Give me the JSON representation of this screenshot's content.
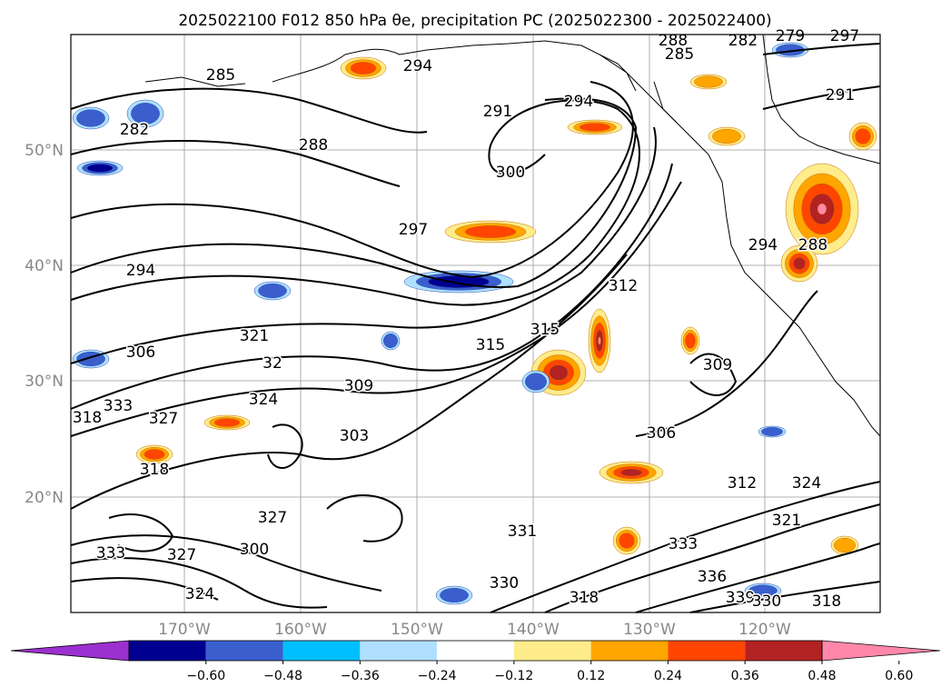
{
  "chart_data": {
    "type": "contour",
    "title": "2025022100 F012 850 hPa θe, precipitation PC (2025022300 - 2025022400)",
    "lat_ticks": [
      "50°N",
      "40°N",
      "30°N",
      "20°N"
    ],
    "lon_ticks": [
      "170°W",
      "160°W",
      "150°W",
      "140°W",
      "130°W",
      "120°W"
    ],
    "colorbar": {
      "ticks": [
        "−0.60",
        "−0.48",
        "−0.36",
        "−0.24",
        "−0.12",
        "0.12",
        "0.24",
        "0.36",
        "0.48",
        "0.60"
      ],
      "colors": [
        "#9b30d0",
        "#000090",
        "#3a5fcd",
        "#00bfff",
        "#b0e0ff",
        "#ffffff",
        "#ffec8b",
        "#ffa500",
        "#ff4500",
        "#b22222",
        "#ff88aa"
      ]
    },
    "contour_labels": [
      "285",
      "294",
      "282",
      "288",
      "291",
      "294",
      "300",
      "297",
      "294",
      "306",
      "32",
      "321",
      "333",
      "324",
      "327",
      "318",
      "315",
      "309",
      "303",
      "306",
      "309",
      "312",
      "324",
      "321",
      "333",
      "336",
      "339",
      "330",
      "318",
      "333",
      "327",
      "300",
      "285",
      "288",
      "282",
      "279",
      "297",
      "291",
      "294",
      "288",
      "318",
      "331",
      "327",
      "318",
      "330",
      "312",
      "315",
      "324"
    ],
    "precip_colors": {
      "neg": [
        "#b0e0ff",
        "#3a5fcd",
        "#000090"
      ],
      "pos": [
        "#ffec8b",
        "#ffa500",
        "#ff4500",
        "#b22222",
        "#ff88aa"
      ]
    }
  }
}
